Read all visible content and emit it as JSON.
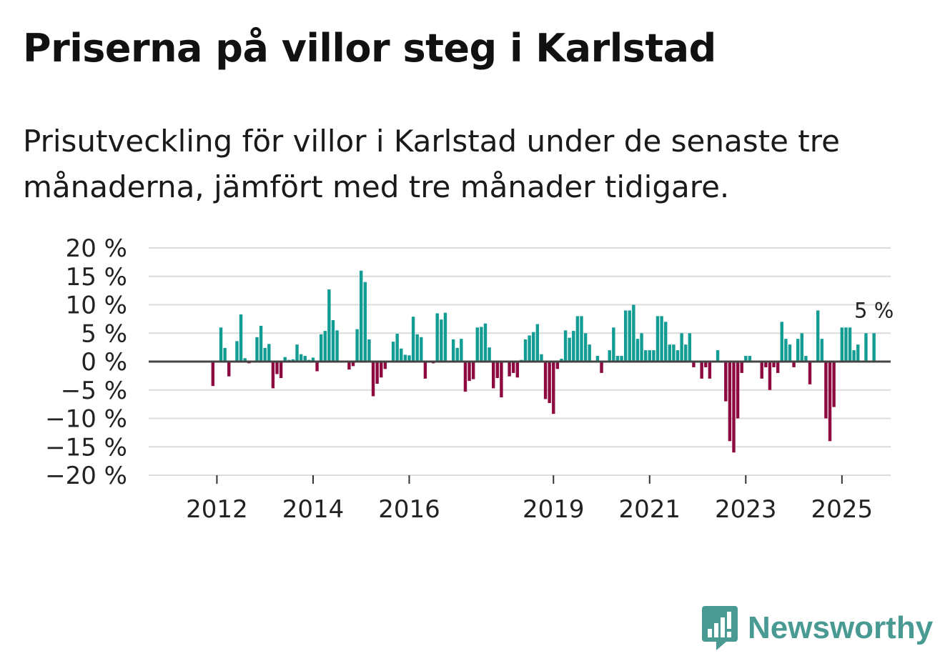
{
  "title": "Priserna på villor steg i Karlstad",
  "subtitle": "Prisutveckling för villor i Karlstad under de senaste tre månaderna, jämfört med tre månader tidigare.",
  "brand": {
    "name": "Newsworthy"
  },
  "colors": {
    "positive": "#139c94",
    "negative": "#8c0a3f",
    "grid": "#dcdcdc",
    "zero_line": "#444444"
  },
  "chart_data": {
    "type": "bar",
    "title": "Priserna på villor steg i Karlstad",
    "xlabel": "",
    "ylabel": "",
    "ylim": [
      -20,
      20
    ],
    "y_ticks": [
      {
        "value": 20,
        "label": "20 %"
      },
      {
        "value": 15,
        "label": "15 %"
      },
      {
        "value": 10,
        "label": "10 %"
      },
      {
        "value": 5,
        "label": "5 %"
      },
      {
        "value": 0,
        "label": "0 %"
      },
      {
        "value": -5,
        "label": "−5 %"
      },
      {
        "value": -10,
        "label": "−10 %"
      },
      {
        "value": -15,
        "label": "−15 %"
      },
      {
        "value": -20,
        "label": "−20 %"
      }
    ],
    "x_ticks": [
      {
        "index": 8,
        "label": "2012"
      },
      {
        "index": 32,
        "label": "2014"
      },
      {
        "index": 56,
        "label": "2016"
      },
      {
        "index": 92,
        "label": "2019"
      },
      {
        "index": 116,
        "label": "2021"
      },
      {
        "index": 140,
        "label": "2023"
      },
      {
        "index": 164,
        "label": "2025"
      }
    ],
    "n_slots": 174,
    "series": [
      {
        "name": "Prisutveckling",
        "values": [
          null,
          null,
          null,
          null,
          null,
          null,
          null,
          -4.3,
          null,
          6.0,
          2.4,
          -2.6,
          null,
          3.6,
          8.3,
          0.6,
          -0.3,
          null,
          4.3,
          6.3,
          2.4,
          3.1,
          -4.7,
          -2.2,
          -2.9,
          0.8,
          0.3,
          0.4,
          3.0,
          1.3,
          1.0,
          0.3,
          0.7,
          -1.7,
          4.8,
          5.4,
          12.7,
          7.3,
          5.5,
          null,
          null,
          -1.4,
          -0.8,
          5.7,
          16.0,
          14.0,
          3.9,
          -6.1,
          -3.9,
          -2.8,
          -1.3,
          null,
          3.5,
          4.9,
          2.3,
          1.2,
          1.1,
          7.9,
          4.8,
          4.3,
          -3.0,
          null,
          -0.3,
          8.5,
          7.4,
          8.6,
          null,
          3.9,
          2.4,
          4.0,
          -5.3,
          -3.4,
          -3.1,
          6.0,
          6.1,
          6.7,
          2.5,
          -4.7,
          -2.9,
          -6.3,
          null,
          -2.6,
          -2.0,
          -2.8,
          0.3,
          3.9,
          4.6,
          5.2,
          6.6,
          1.3,
          -6.6,
          -7.3,
          -9.2,
          -1.3,
          0.5,
          5.5,
          4.2,
          5.4,
          8.0,
          8.0,
          5.0,
          3.0,
          0.0,
          1.0,
          -2.0,
          null,
          2.0,
          6.0,
          1.0,
          1.0,
          9.0,
          9.0,
          10.0,
          4.0,
          5.0,
          2.0,
          2.0,
          2.0,
          8.0,
          8.0,
          7.0,
          3.0,
          3.0,
          2.0,
          5.0,
          3.0,
          5.0,
          -1.0,
          null,
          -3.0,
          -1.0,
          -3.0,
          null,
          2.0,
          null,
          -7.0,
          -14.0,
          -16.0,
          -10.0,
          -2.0,
          1.0,
          1.0,
          null,
          null,
          -3.0,
          -1.0,
          -5.0,
          -1.0,
          -2.0,
          7.0,
          4.0,
          3.0,
          -1.0,
          4.0,
          5.0,
          1.0,
          -4.0,
          null,
          9.0,
          4.0,
          -10.0,
          -14.0,
          -8.0,
          null,
          6.0,
          6.0,
          6.0,
          2.0,
          3.0,
          null,
          5.0,
          null,
          5.0,
          null
        ]
      }
    ],
    "annotations": [
      {
        "index": 172,
        "label": "5 %"
      }
    ]
  }
}
